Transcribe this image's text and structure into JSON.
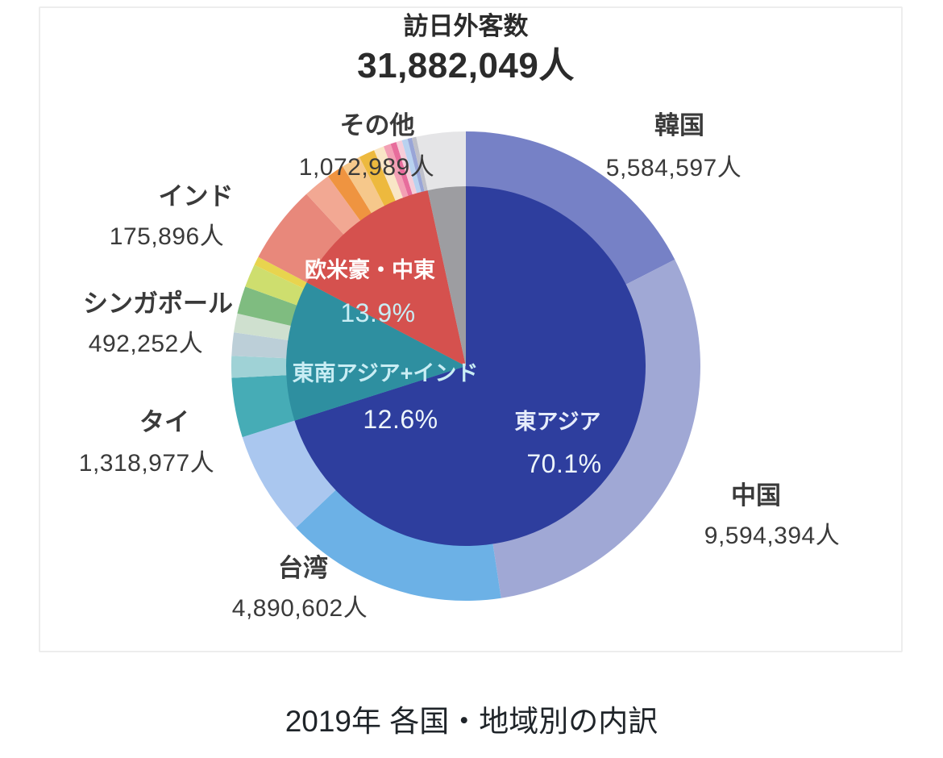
{
  "page": {
    "caption": "2019年 各国・地域別の内訳"
  },
  "chart_data": {
    "type": "donut",
    "title": "訪日外客数",
    "total_label": "31,882,049人",
    "total_value": 31882049,
    "legend_position": "callouts",
    "inner_ring": [
      {
        "label": "東アジア",
        "pct": 70.1,
        "pct_label": "70.1%",
        "color": "#2e3e9e"
      },
      {
        "label": "東南アジア+インド",
        "pct": 12.6,
        "pct_label": "12.6%",
        "color": "#2e8fa0"
      },
      {
        "label": "欧米豪・中東",
        "pct": 13.9,
        "pct_label": "13.9%",
        "color": "#d5514e"
      },
      {
        "label": "",
        "pct": 3.4,
        "color": "#9d9da1"
      }
    ],
    "outer_ring": [
      {
        "label": "韓国",
        "value_label": "5,584,597人",
        "value": 5584597,
        "pct": 17.5,
        "color": "#7681c6"
      },
      {
        "label": "中国",
        "value_label": "9,594,394人",
        "value": 9594394,
        "pct": 30.1,
        "color": "#a0a8d5"
      },
      {
        "label": "台湾",
        "value_label": "4,890,602人",
        "value": 4890602,
        "pct": 15.3,
        "color": "#6cb1e6"
      },
      {
        "label": "",
        "pct": 7.2,
        "color": "#aac7ef"
      },
      {
        "label": "タイ",
        "value_label": "1,318,977人",
        "value": 1318977,
        "pct": 4.1,
        "color": "#46acb6"
      },
      {
        "label": "シンガポール",
        "value_label": "492,252人",
        "value": 492252,
        "pct": 1.5,
        "color": "#9fd2d6"
      },
      {
        "label": "",
        "pct": 1.6,
        "color": "#bccfd8"
      },
      {
        "label": "",
        "pct": 1.3,
        "color": "#cfe0cf"
      },
      {
        "label": "",
        "pct": 1.9,
        "color": "#7fbc80"
      },
      {
        "label": "",
        "pct": 1.6,
        "color": "#cede6e"
      },
      {
        "label": "インド",
        "value_label": "175,896人",
        "value": 175896,
        "pct": 0.6,
        "color": "#e8d44e"
      },
      {
        "label": "",
        "pct": 5.4,
        "color": "#e8887b"
      },
      {
        "label": "",
        "pct": 1.9,
        "color": "#f2a893"
      },
      {
        "label": "",
        "pct": 1.2,
        "color": "#ef9440"
      },
      {
        "label": "",
        "pct": 1.3,
        "color": "#f6c88b"
      },
      {
        "label": "",
        "pct": 1.1,
        "color": "#edb93e"
      },
      {
        "label": "",
        "pct": 0.7,
        "color": "#f9e6c6"
      },
      {
        "label": "",
        "pct": 0.5,
        "color": "#f3a0b5"
      },
      {
        "label": "",
        "pct": 0.4,
        "color": "#e76d9c"
      },
      {
        "label": "",
        "pct": 0.4,
        "color": "#f6cdd9"
      },
      {
        "label": "",
        "pct": 0.4,
        "color": "#b9d2f0"
      },
      {
        "label": "",
        "pct": 0.3,
        "color": "#99a5d7"
      },
      {
        "label": "",
        "pct": 0.3,
        "color": "#bfc0c9"
      },
      {
        "label": "その他",
        "value_label": "1,072,989人",
        "value": 1072989,
        "pct": 3.4,
        "color": "#e5e5e7"
      }
    ]
  }
}
